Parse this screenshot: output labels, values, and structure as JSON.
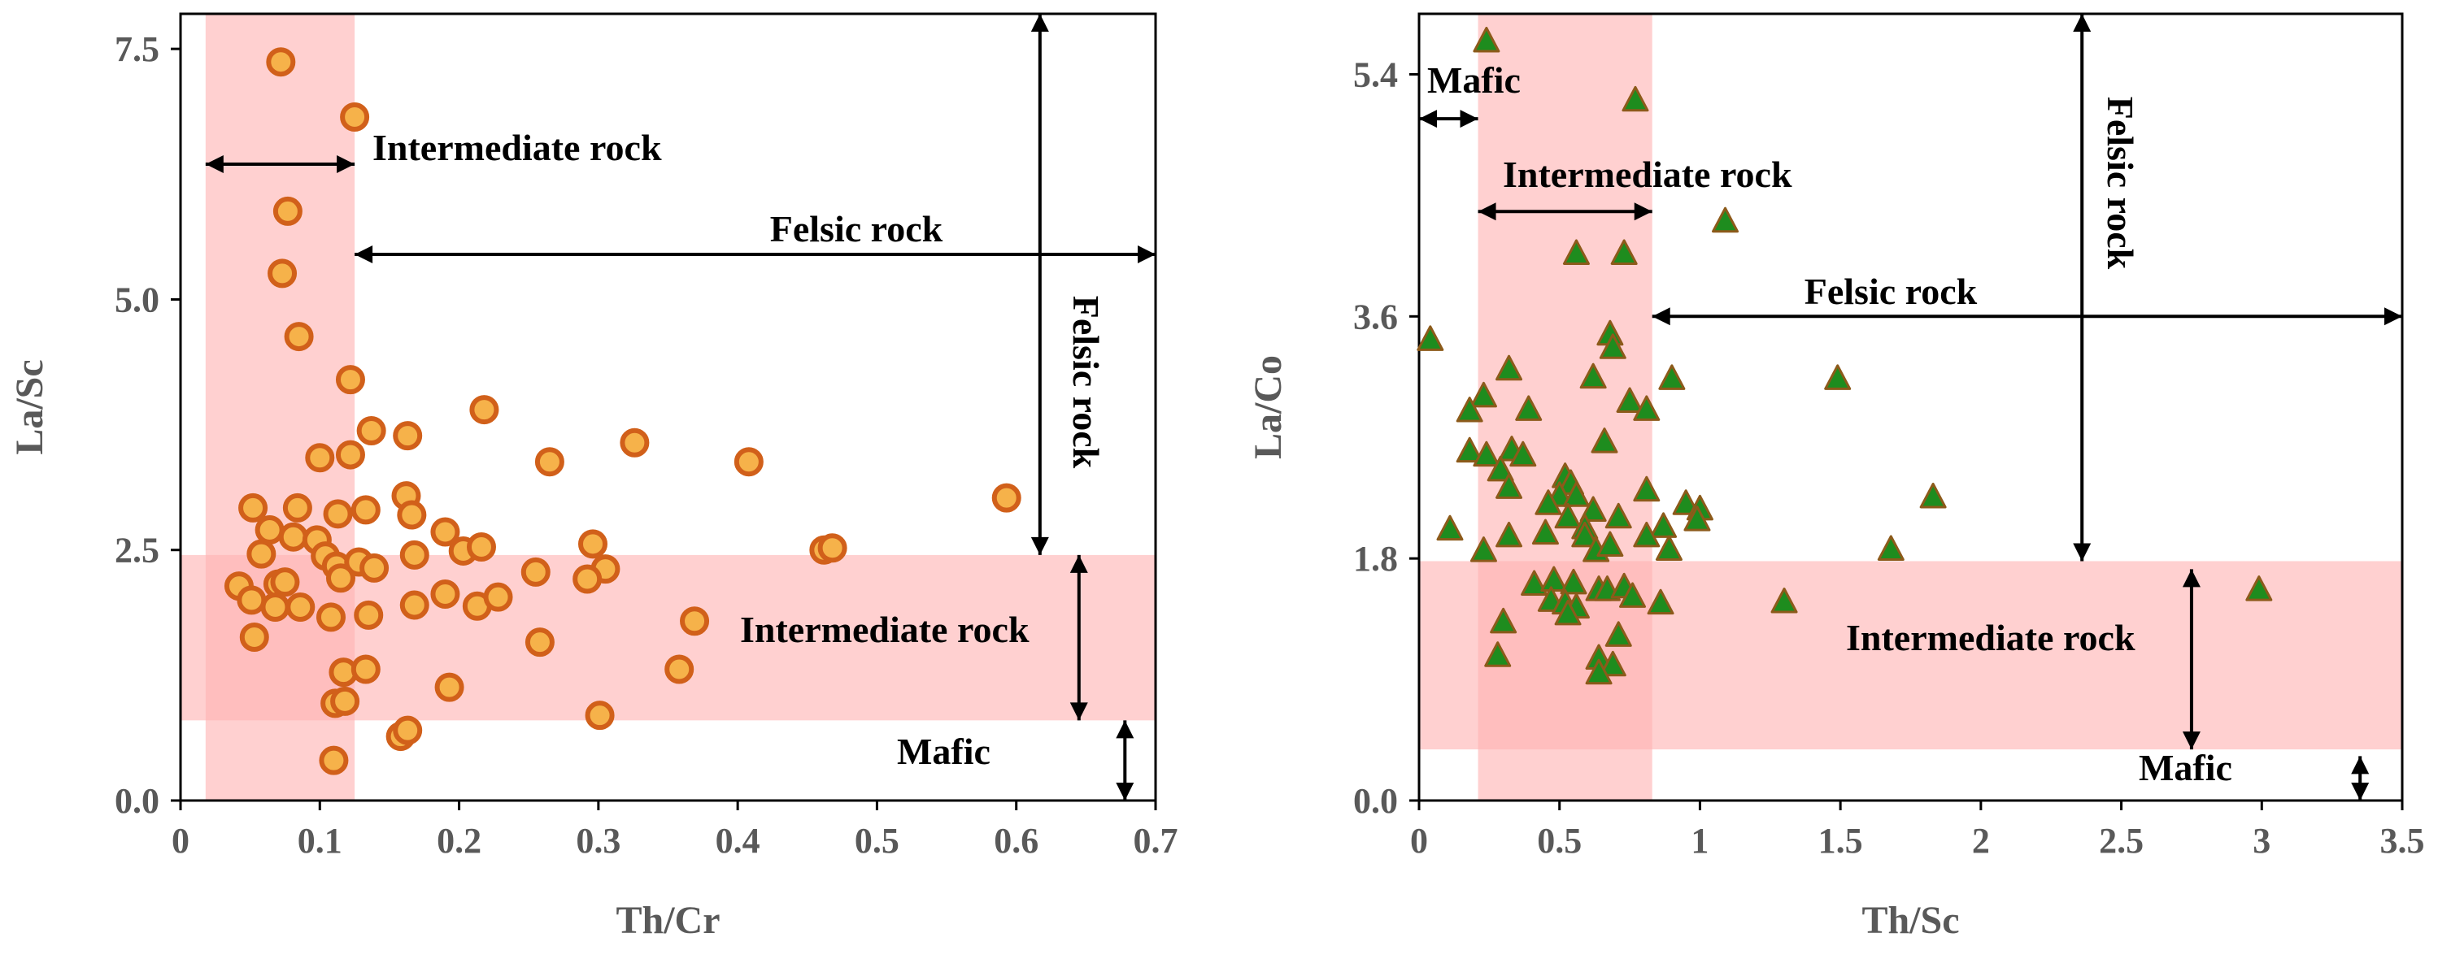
{
  "chart_data": [
    {
      "type": "scatter",
      "xlabel": "Th/Cr",
      "ylabel": "La/Sc",
      "xlim": [
        0,
        0.7
      ],
      "ylim": [
        0,
        7.85
      ],
      "xticks": [
        0,
        0.1,
        0.2,
        0.3,
        0.4,
        0.5,
        0.6,
        0.7
      ],
      "xtick_labels": [
        "0",
        "0.1",
        "0.2",
        "0.3",
        "0.4",
        "0.5",
        "0.6",
        "0.7"
      ],
      "yticks": [
        0,
        2.5,
        5.0,
        7.5
      ],
      "ytick_labels": [
        "0.0",
        "2.5",
        "5.0",
        "7.5"
      ],
      "marker": "circle",
      "marker_fill": "#f6b24a",
      "marker_stroke": "#d1601a",
      "shaded_regions": [
        {
          "name": "Intermediate rock (Th/Cr band)",
          "x": [
            0.018,
            0.125
          ],
          "color": "#ffb3b3"
        },
        {
          "name": "Intermediate rock (La/Sc band)",
          "y": [
            0.8,
            2.45
          ],
          "color": "#ffb3b3"
        }
      ],
      "annotations": [
        {
          "text": "Intermediate rock",
          "type": "horizontal-arrow",
          "from": [
            0.018,
            6.35
          ],
          "to": [
            0.125,
            6.35
          ]
        },
        {
          "text": "Felsic rock",
          "type": "horizontal-arrow",
          "from": [
            0.125,
            5.45
          ],
          "to": [
            0.7,
            5.45
          ]
        },
        {
          "text": "Felsic rock",
          "type": "vertical-arrow",
          "from": [
            0.617,
            7.85
          ],
          "to": [
            0.617,
            2.45
          ]
        },
        {
          "text": "Intermediate rock",
          "type": "vertical-arrow",
          "from": [
            0.645,
            2.45
          ],
          "to": [
            0.645,
            0.8
          ]
        },
        {
          "text": "Mafic",
          "type": "vertical-arrow",
          "from": [
            0.678,
            0.8
          ],
          "to": [
            0.678,
            0.0
          ]
        }
      ],
      "points": [
        [
          0.072,
          7.37
        ],
        [
          0.125,
          6.82
        ],
        [
          0.077,
          5.88
        ],
        [
          0.073,
          5.26
        ],
        [
          0.085,
          4.63
        ],
        [
          0.122,
          4.2
        ],
        [
          0.218,
          3.9
        ],
        [
          0.137,
          3.69
        ],
        [
          0.163,
          3.64
        ],
        [
          0.326,
          3.57
        ],
        [
          0.1,
          3.42
        ],
        [
          0.122,
          3.45
        ],
        [
          0.265,
          3.38
        ],
        [
          0.408,
          3.38
        ],
        [
          0.593,
          3.02
        ],
        [
          0.052,
          2.92
        ],
        [
          0.084,
          2.92
        ],
        [
          0.113,
          2.86
        ],
        [
          0.133,
          2.9
        ],
        [
          0.162,
          3.04
        ],
        [
          0.166,
          2.85
        ],
        [
          0.19,
          2.68
        ],
        [
          0.064,
          2.7
        ],
        [
          0.081,
          2.63
        ],
        [
          0.098,
          2.6
        ],
        [
          0.058,
          2.46
        ],
        [
          0.104,
          2.44
        ],
        [
          0.168,
          2.45
        ],
        [
          0.203,
          2.49
        ],
        [
          0.216,
          2.53
        ],
        [
          0.296,
          2.56
        ],
        [
          0.462,
          2.5
        ],
        [
          0.468,
          2.52
        ],
        [
          0.112,
          2.34
        ],
        [
          0.128,
          2.38
        ],
        [
          0.139,
          2.32
        ],
        [
          0.255,
          2.28
        ],
        [
          0.305,
          2.31
        ],
        [
          0.115,
          2.22
        ],
        [
          0.292,
          2.21
        ],
        [
          0.042,
          2.14
        ],
        [
          0.07,
          2.16
        ],
        [
          0.075,
          2.18
        ],
        [
          0.051,
          2.0
        ],
        [
          0.068,
          1.93
        ],
        [
          0.086,
          1.93
        ],
        [
          0.108,
          1.83
        ],
        [
          0.135,
          1.85
        ],
        [
          0.168,
          1.95
        ],
        [
          0.19,
          2.06
        ],
        [
          0.213,
          1.94
        ],
        [
          0.228,
          2.03
        ],
        [
          0.369,
          1.79
        ],
        [
          0.053,
          1.63
        ],
        [
          0.258,
          1.58
        ],
        [
          0.117,
          1.28
        ],
        [
          0.133,
          1.31
        ],
        [
          0.358,
          1.31
        ],
        [
          0.193,
          1.13
        ],
        [
          0.111,
          0.97
        ],
        [
          0.118,
          0.99
        ],
        [
          0.301,
          0.85
        ],
        [
          0.158,
          0.64
        ],
        [
          0.163,
          0.7
        ],
        [
          0.11,
          0.4
        ]
      ]
    },
    {
      "type": "scatter",
      "xlabel": "Th/Sc",
      "ylabel": "La/Co",
      "xlim": [
        0,
        3.5
      ],
      "ylim": [
        0,
        5.85
      ],
      "xticks": [
        0,
        0.5,
        1,
        1.5,
        2,
        2.5,
        3,
        3.5
      ],
      "xtick_labels": [
        "0",
        "0.5",
        "1",
        "1.5",
        "2",
        "2.5",
        "3",
        "3.5"
      ],
      "yticks": [
        0,
        1.8,
        3.6,
        5.4
      ],
      "ytick_labels": [
        "0.0",
        "1.8",
        "3.6",
        "5.4"
      ],
      "marker": "triangle",
      "marker_fill": "#1e8c1e",
      "marker_stroke": "#8c5a1a",
      "shaded_regions": [
        {
          "name": "Intermediate rock (Th/Sc band)",
          "x": [
            0.21,
            0.83
          ],
          "color": "#ffb3b3"
        },
        {
          "name": "Intermediate rock (La/Co band)",
          "y": [
            0.38,
            1.78
          ],
          "color": "#ffb3b3"
        }
      ],
      "annotations": [
        {
          "text": "Mafic",
          "type": "horizontal-arrow",
          "from": [
            0.0,
            5.07
          ],
          "to": [
            0.21,
            5.07
          ]
        },
        {
          "text": "Intermediate rock",
          "type": "horizontal-arrow",
          "from": [
            0.21,
            4.38
          ],
          "to": [
            0.83,
            4.38
          ]
        },
        {
          "text": "Felsic rock",
          "type": "horizontal-arrow",
          "from": [
            0.83,
            3.6
          ],
          "to": [
            3.5,
            3.6
          ]
        },
        {
          "text": "Felsic rock",
          "type": "vertical-arrow",
          "from": [
            2.36,
            5.85
          ],
          "to": [
            2.36,
            1.78
          ]
        },
        {
          "text": "Intermediate rock",
          "type": "vertical-arrow",
          "from": [
            2.75,
            1.72
          ],
          "to": [
            2.75,
            0.38
          ]
        },
        {
          "text": "Mafic",
          "type": "vertical-arrow",
          "from": [
            3.35,
            0.33
          ],
          "to": [
            3.35,
            0.0
          ]
        }
      ],
      "points": [
        [
          0.24,
          5.64
        ],
        [
          0.77,
          5.2
        ],
        [
          1.09,
          4.3
        ],
        [
          0.56,
          4.06
        ],
        [
          0.73,
          4.06
        ],
        [
          0.04,
          3.42
        ],
        [
          0.68,
          3.46
        ],
        [
          0.69,
          3.36
        ],
        [
          0.32,
          3.2
        ],
        [
          0.62,
          3.14
        ],
        [
          0.9,
          3.13
        ],
        [
          1.49,
          3.13
        ],
        [
          0.23,
          3.0
        ],
        [
          0.75,
          2.96
        ],
        [
          0.81,
          2.9
        ],
        [
          0.18,
          2.89
        ],
        [
          0.39,
          2.9
        ],
        [
          0.66,
          2.66
        ],
        [
          0.18,
          2.59
        ],
        [
          0.24,
          2.56
        ],
        [
          0.33,
          2.6
        ],
        [
          0.37,
          2.56
        ],
        [
          0.29,
          2.45
        ],
        [
          0.52,
          2.4
        ],
        [
          0.54,
          2.35
        ],
        [
          0.32,
          2.32
        ],
        [
          0.5,
          2.26
        ],
        [
          0.56,
          2.26
        ],
        [
          0.81,
          2.3
        ],
        [
          1.83,
          2.25
        ],
        [
          0.46,
          2.2
        ],
        [
          0.62,
          2.15
        ],
        [
          0.95,
          2.2
        ],
        [
          1.0,
          2.16
        ],
        [
          0.71,
          2.1
        ],
        [
          0.53,
          2.1
        ],
        [
          0.99,
          2.08
        ],
        [
          0.11,
          2.01
        ],
        [
          0.59,
          2.02
        ],
        [
          0.87,
          2.03
        ],
        [
          0.32,
          1.96
        ],
        [
          0.45,
          1.98
        ],
        [
          0.59,
          1.96
        ],
        [
          0.81,
          1.96
        ],
        [
          0.63,
          1.85
        ],
        [
          0.23,
          1.85
        ],
        [
          0.89,
          1.86
        ],
        [
          1.68,
          1.86
        ],
        [
          0.68,
          1.89
        ],
        [
          0.41,
          1.6
        ],
        [
          0.48,
          1.63
        ],
        [
          0.55,
          1.61
        ],
        [
          0.64,
          1.56
        ],
        [
          0.67,
          1.56
        ],
        [
          0.73,
          1.58
        ],
        [
          0.76,
          1.51
        ],
        [
          0.47,
          1.48
        ],
        [
          0.52,
          1.46
        ],
        [
          0.86,
          1.46
        ],
        [
          1.3,
          1.47
        ],
        [
          0.56,
          1.43
        ],
        [
          0.53,
          1.38
        ],
        [
          2.99,
          1.56
        ],
        [
          0.3,
          1.32
        ],
        [
          0.71,
          1.22
        ],
        [
          0.64,
          1.05
        ],
        [
          0.28,
          1.07
        ],
        [
          0.69,
          1.0
        ],
        [
          0.64,
          0.94
        ]
      ]
    }
  ]
}
